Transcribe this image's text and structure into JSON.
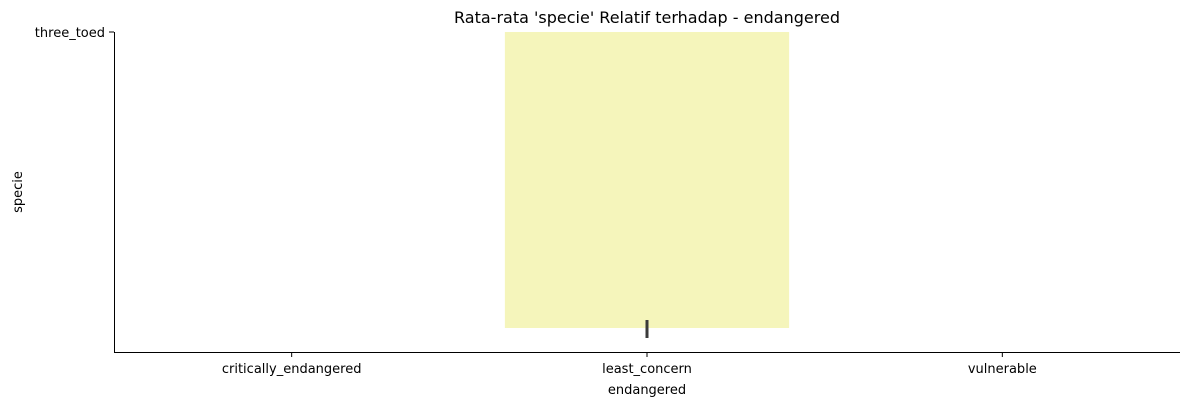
{
  "chart_data": {
    "type": "bar",
    "title": "Rata-rata 'specie' Relatif terhadap - endangered",
    "xlabel": "endangered",
    "ylabel": "specie",
    "categories": [
      "critically_endangered",
      "least_concern",
      "vulnerable"
    ],
    "y_ticks": [
      "three_toed"
    ],
    "bars": [
      {
        "category": "least_concern",
        "color": "#f5f5bb",
        "has_error_bar": true
      }
    ],
    "error_bar_color": "#3a3a3a",
    "grid": false,
    "legend": "none"
  }
}
